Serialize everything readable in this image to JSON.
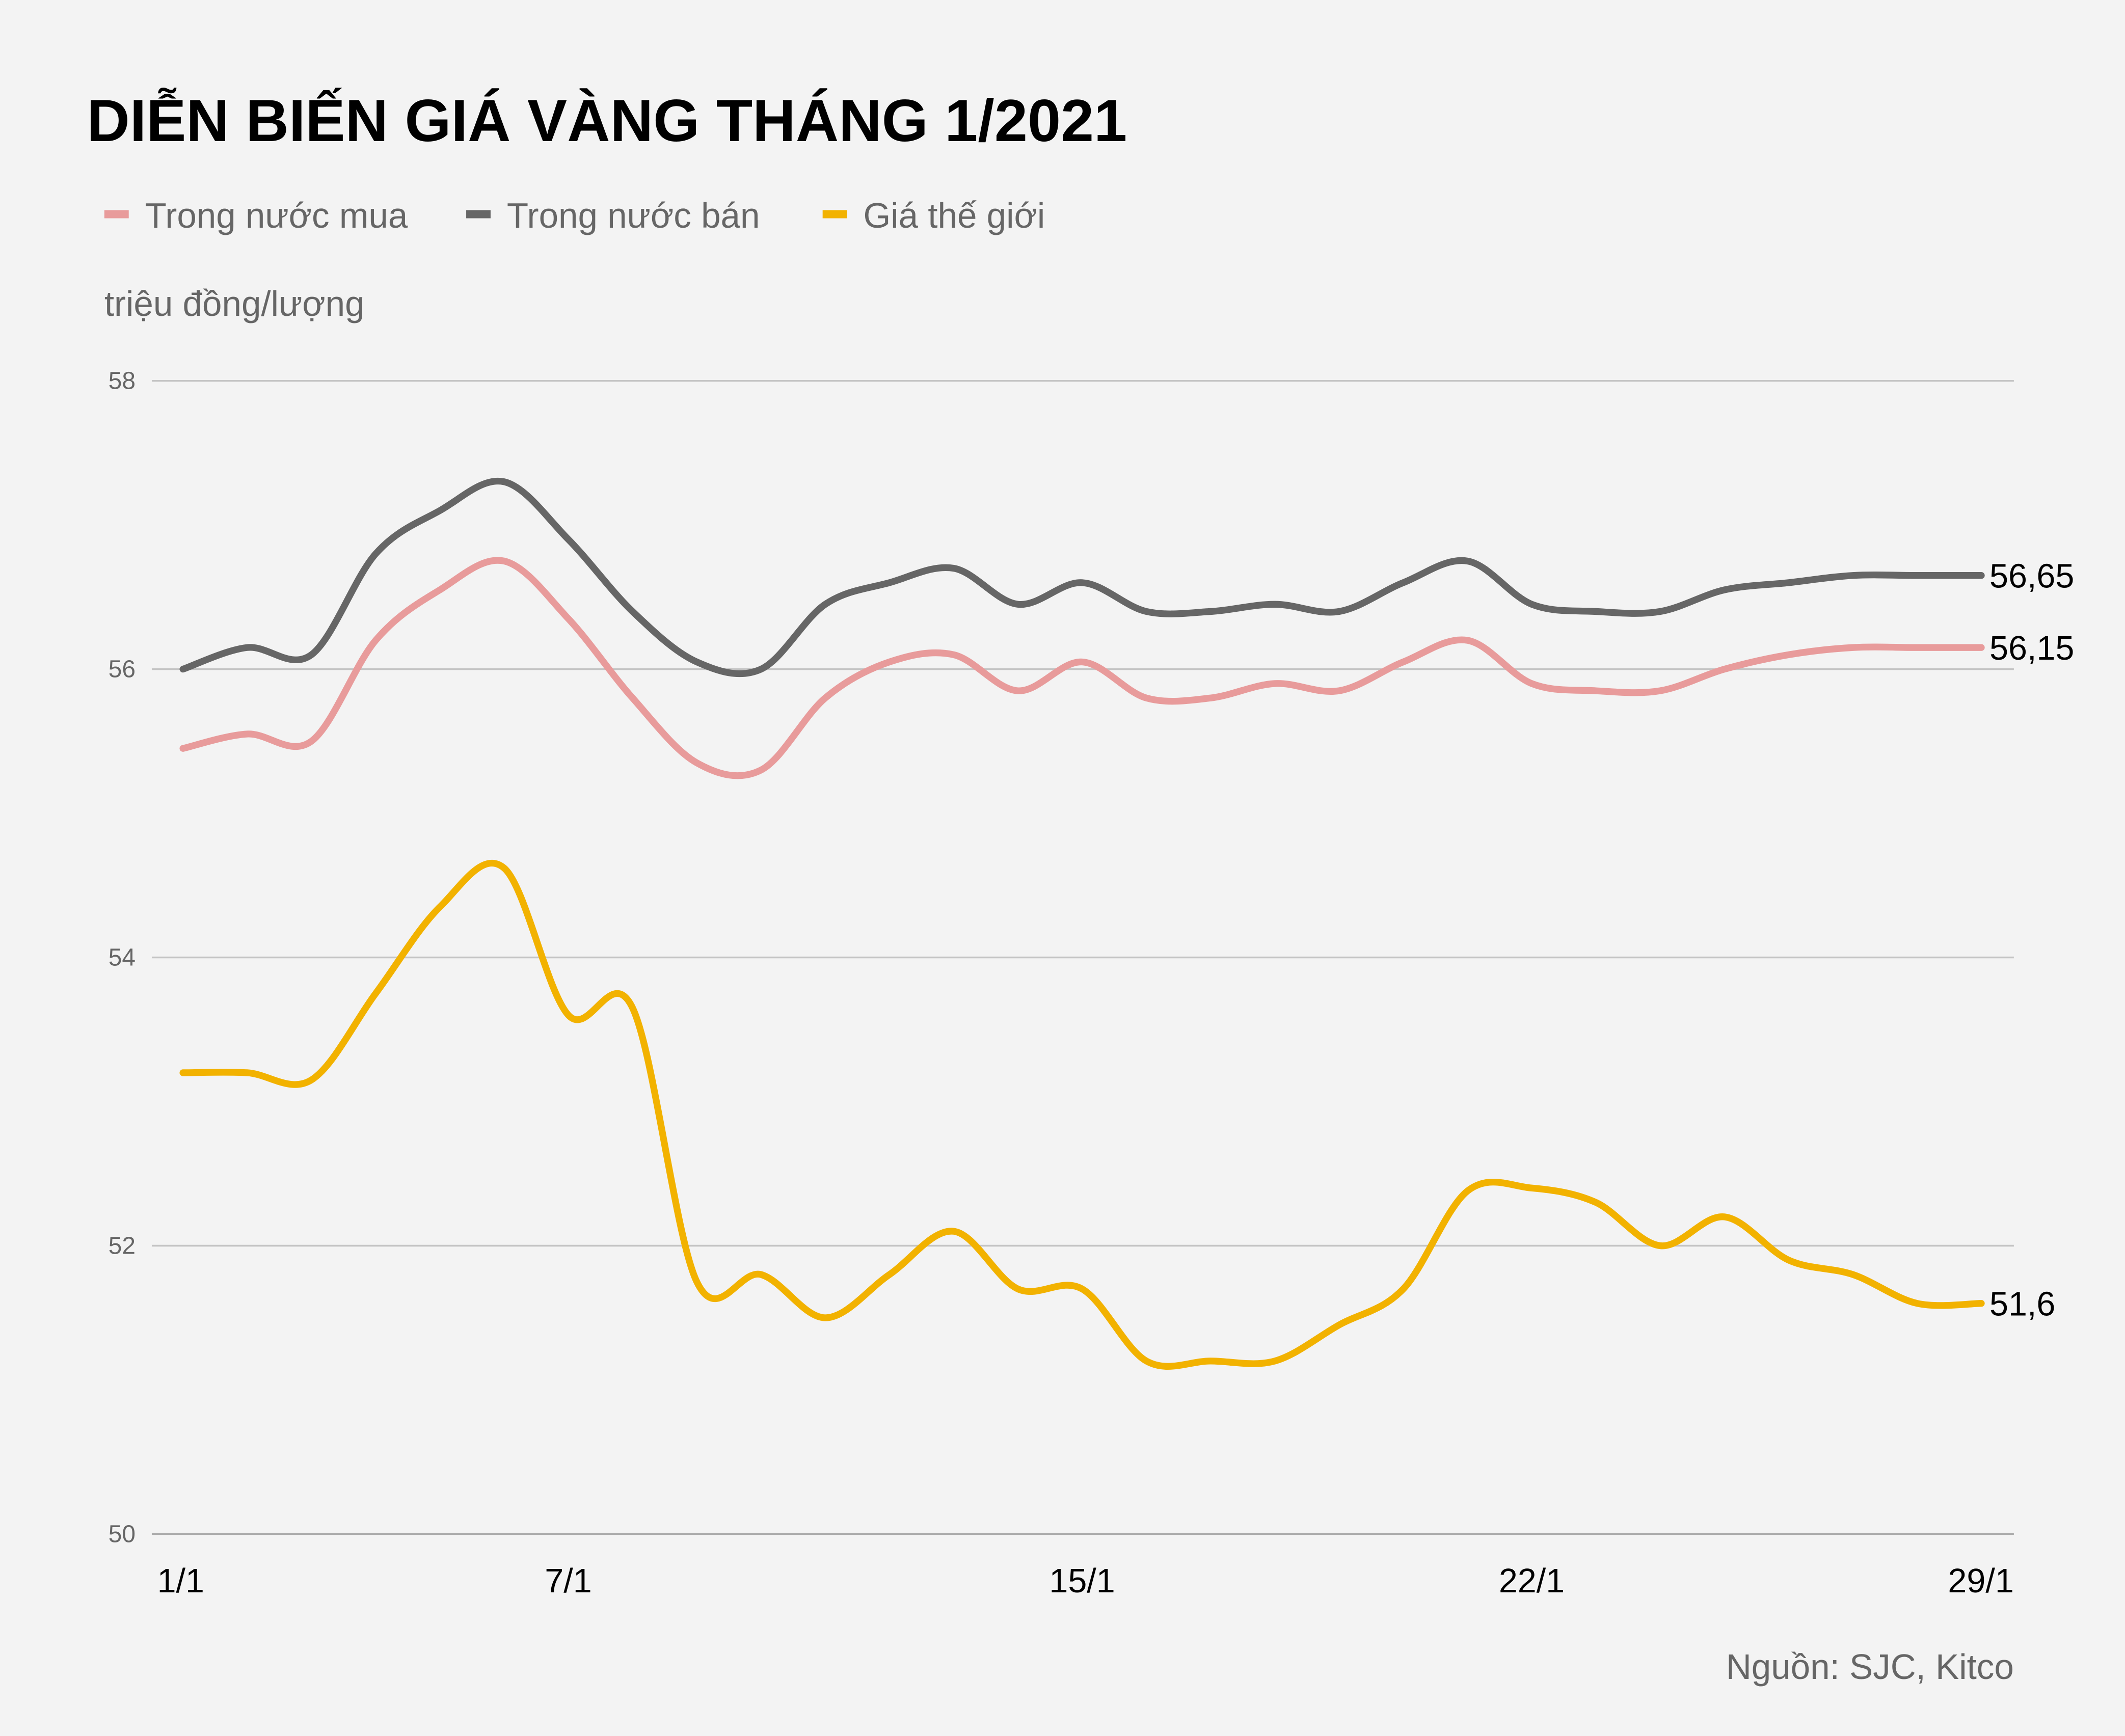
{
  "chart_data": {
    "type": "line",
    "title": "DIỄN BIẾN GIÁ VÀNG THÁNG 1/2021",
    "ylabel": "triệu đồng/lượng",
    "source": "Nguồn: SJC, Kitco",
    "ylim": [
      50,
      58
    ],
    "yticks": [
      "58",
      "56",
      "54",
      "52",
      "50"
    ],
    "ytick_values": [
      58,
      56,
      54,
      52,
      50
    ],
    "x": [
      1,
      2,
      3,
      4,
      5,
      6,
      7,
      8,
      9,
      10,
      11,
      12,
      13,
      14,
      15,
      16,
      17,
      18,
      19,
      20,
      21,
      22,
      23,
      24,
      25,
      26,
      27,
      28,
      29
    ],
    "xticks": [
      {
        "x": 1,
        "label": "1/1"
      },
      {
        "x": 7,
        "label": "7/1"
      },
      {
        "x": 15,
        "label": "15/1"
      },
      {
        "x": 22,
        "label": "22/1"
      },
      {
        "x": 29,
        "label": "29/1"
      }
    ],
    "grid": true,
    "legend_position": "top-left",
    "series": [
      {
        "name": "Trong nước mua",
        "color": "#e89b9b",
        "end_label": "56,15",
        "values": [
          55.45,
          55.55,
          55.5,
          56.2,
          56.55,
          56.75,
          56.35,
          55.8,
          55.35,
          55.3,
          55.8,
          56.05,
          56.1,
          55.85,
          56.05,
          55.8,
          55.8,
          55.9,
          55.85,
          56.05,
          56.2,
          55.9,
          55.85,
          55.85,
          56.0,
          56.1,
          56.15,
          56.15,
          56.15
        ]
      },
      {
        "name": "Trong nước bán",
        "color": "#666666",
        "end_label": "56,65",
        "values": [
          56.0,
          56.15,
          56.1,
          56.8,
          57.1,
          57.3,
          56.9,
          56.4,
          56.05,
          56.0,
          56.45,
          56.6,
          56.7,
          56.45,
          56.6,
          56.4,
          56.4,
          56.45,
          56.4,
          56.6,
          56.75,
          56.45,
          56.4,
          56.4,
          56.55,
          56.6,
          56.65,
          56.65,
          56.65
        ]
      },
      {
        "name": "Giá thế giới",
        "color": "#f2b200",
        "end_label": "51,6",
        "values": [
          53.2,
          53.2,
          53.15,
          53.75,
          54.35,
          54.62,
          53.6,
          53.65,
          51.75,
          51.8,
          51.5,
          51.8,
          52.1,
          51.7,
          51.7,
          51.2,
          51.2,
          51.2,
          51.45,
          51.7,
          52.38,
          52.4,
          52.3,
          52.0,
          52.2,
          51.9,
          51.8,
          51.6,
          51.6
        ]
      }
    ]
  }
}
